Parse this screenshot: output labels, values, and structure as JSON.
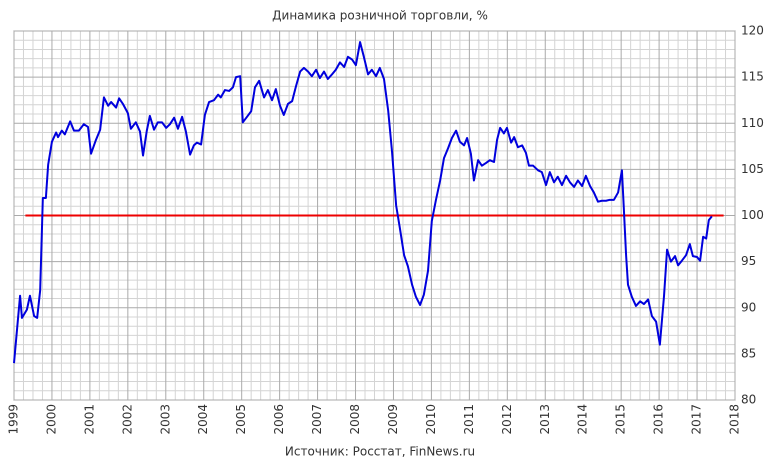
{
  "chart_data": {
    "type": "line",
    "title": "Динамика  розничной  торговли,  %",
    "source": "Источник:  Росстат,  FinNews.ru",
    "x": [
      1999.0,
      1999.16,
      1999.21,
      1999.34,
      1999.42,
      1999.53,
      1999.61,
      1999.69,
      1999.76,
      1999.84,
      1999.9,
      2000.0,
      2000.11,
      2000.16,
      2000.26,
      2000.34,
      2000.48,
      2000.58,
      2000.71,
      2000.84,
      2000.95,
      2001.03,
      2001.16,
      2001.27,
      2001.37,
      2001.48,
      2001.56,
      2001.69,
      2001.77,
      2001.87,
      2002.0,
      2002.08,
      2002.21,
      2002.32,
      2002.4,
      2002.5,
      2002.58,
      2002.69,
      2002.79,
      2002.9,
      2003.01,
      2003.11,
      2003.22,
      2003.32,
      2003.43,
      2003.53,
      2003.64,
      2003.74,
      2003.82,
      2003.93,
      2004.03,
      2004.14,
      2004.27,
      2004.38,
      2004.45,
      2004.56,
      2004.67,
      2004.77,
      2004.85,
      2004.96,
      2005.03,
      2005.14,
      2005.25,
      2005.35,
      2005.46,
      2005.59,
      2005.69,
      2005.8,
      2005.9,
      2006.01,
      2006.11,
      2006.22,
      2006.33,
      2006.43,
      2006.54,
      2006.64,
      2006.75,
      2006.85,
      2006.96,
      2007.06,
      2007.17,
      2007.27,
      2007.38,
      2007.48,
      2007.59,
      2007.7,
      2007.8,
      2007.91,
      2008.01,
      2008.12,
      2008.22,
      2008.33,
      2008.43,
      2008.54,
      2008.64,
      2008.75,
      2008.86,
      2008.96,
      2009.07,
      2009.17,
      2009.28,
      2009.38,
      2009.49,
      2009.59,
      2009.7,
      2009.8,
      2009.91,
      2010.01,
      2010.12,
      2010.23,
      2010.33,
      2010.44,
      2010.54,
      2010.65,
      2010.75,
      2010.86,
      2010.94,
      2011.04,
      2011.12,
      2011.23,
      2011.33,
      2011.44,
      2011.54,
      2011.65,
      2011.73,
      2011.81,
      2011.91,
      2011.99,
      2012.1,
      2012.18,
      2012.28,
      2012.39,
      2012.49,
      2012.57,
      2012.68,
      2012.81,
      2012.91,
      2013.02,
      2013.12,
      2013.23,
      2013.33,
      2013.44,
      2013.55,
      2013.65,
      2013.76,
      2013.86,
      2013.97,
      2014.07,
      2014.18,
      2014.28,
      2014.39,
      2014.49,
      2014.6,
      2014.7,
      2014.81,
      2014.92,
      2015.02,
      2015.07,
      2015.13,
      2015.18,
      2015.28,
      2015.39,
      2015.5,
      2015.6,
      2015.71,
      2015.81,
      2015.92,
      2016.02,
      2016.13,
      2016.21,
      2016.31,
      2016.42,
      2016.5,
      2016.6,
      2016.71,
      2016.81,
      2016.89,
      2017.0,
      2017.08,
      2017.16,
      2017.24,
      2017.31,
      2017.39
    ],
    "series": [
      {
        "color": "#0000dd",
        "values": [
          84,
          91.3,
          88.9,
          89.8,
          91.3,
          89.1,
          88.9,
          91.9,
          101.9,
          101.9,
          105.5,
          108,
          109,
          108.5,
          109.2,
          108.8,
          110.2,
          109.2,
          109.2,
          109.9,
          109.6,
          106.7,
          108.2,
          109.3,
          112.8,
          111.9,
          112.3,
          111.7,
          112.7,
          112.1,
          111.1,
          109.4,
          110.1,
          109.1,
          106.5,
          109.2,
          110.8,
          109.3,
          110.1,
          110.1,
          109.5,
          109.9,
          110.6,
          109.4,
          110.7,
          109.1,
          106.6,
          107.6,
          107.9,
          107.7,
          110.9,
          112.3,
          112.5,
          113.1,
          112.8,
          113.6,
          113.5,
          113.9,
          115,
          115.1,
          110.1,
          110.7,
          111.3,
          113.9,
          114.6,
          112.8,
          113.6,
          112.5,
          113.7,
          111.9,
          110.9,
          112.1,
          112.4,
          114,
          115.6,
          116,
          115.6,
          115.1,
          115.8,
          114.9,
          115.6,
          114.8,
          115.3,
          115.8,
          116.6,
          116.1,
          117.2,
          116.9,
          116.3,
          118.8,
          117.2,
          115.3,
          115.8,
          115.1,
          116,
          114.8,
          111.4,
          107,
          101.1,
          98.6,
          95.7,
          94.5,
          92.5,
          91.2,
          90.3,
          91.4,
          94,
          99.4,
          101.7,
          103.8,
          106.2,
          107.3,
          108.4,
          109.2,
          108,
          107.6,
          108.4,
          106.7,
          103.8,
          106,
          105.4,
          105.7,
          106,
          105.8,
          108.2,
          109.5,
          108.9,
          109.5,
          107.9,
          108.5,
          107.4,
          107.6,
          106.8,
          105.4,
          105.4,
          104.9,
          104.7,
          103.3,
          104.7,
          103.6,
          104.2,
          103.3,
          104.3,
          103.6,
          103.1,
          103.8,
          103.2,
          104.3,
          103.2,
          102.5,
          101.5,
          101.6,
          101.6,
          101.7,
          101.7,
          102.5,
          104.9,
          100.8,
          95.7,
          92.5,
          91.2,
          90.2,
          90.7,
          90.4,
          90.9,
          89.1,
          88.5,
          86,
          91.3,
          96.3,
          95,
          95.6,
          94.6,
          95.1,
          95.7,
          96.9,
          95.6,
          95.5,
          95.1,
          97.7,
          97.5,
          99.5,
          99.9
        ]
      }
    ],
    "reference_line": {
      "value": 100,
      "x": [
        1999.3,
        2017.7
      ],
      "color": "#ee0000"
    },
    "xlim": [
      1999,
      2018
    ],
    "xticks": [
      1999,
      2000,
      2001,
      2002,
      2003,
      2004,
      2005,
      2006,
      2007,
      2008,
      2009,
      2010,
      2011,
      2012,
      2013,
      2014,
      2015,
      2016,
      2017,
      2018
    ],
    "ylim": [
      80,
      120
    ],
    "yticks": [
      80,
      85,
      90,
      95,
      100,
      105,
      110,
      115,
      120
    ],
    "grid": true,
    "minor_grid": true
  }
}
